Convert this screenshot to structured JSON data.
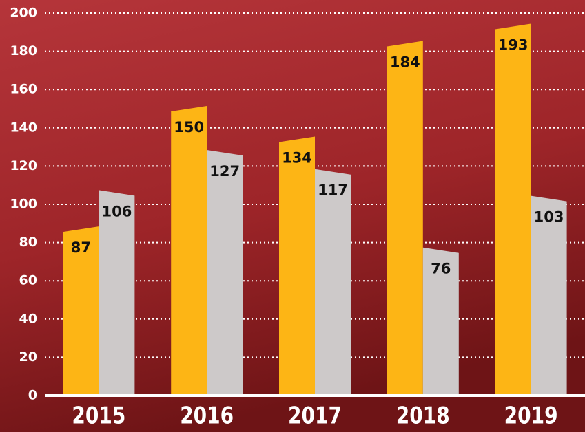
{
  "chart_data": {
    "type": "bar",
    "categories": [
      "2015",
      "2016",
      "2017",
      "2018",
      "2019"
    ],
    "series": [
      {
        "color": "#fdb515",
        "values": [
          87,
          150,
          134,
          184,
          193
        ]
      },
      {
        "color": "#cdc9c9",
        "values": [
          106,
          127,
          117,
          76,
          103
        ]
      }
    ],
    "ylim": [
      0,
      200
    ],
    "yticks": [
      0,
      20,
      40,
      60,
      80,
      100,
      120,
      140,
      160,
      180,
      200
    ],
    "grid": true
  }
}
